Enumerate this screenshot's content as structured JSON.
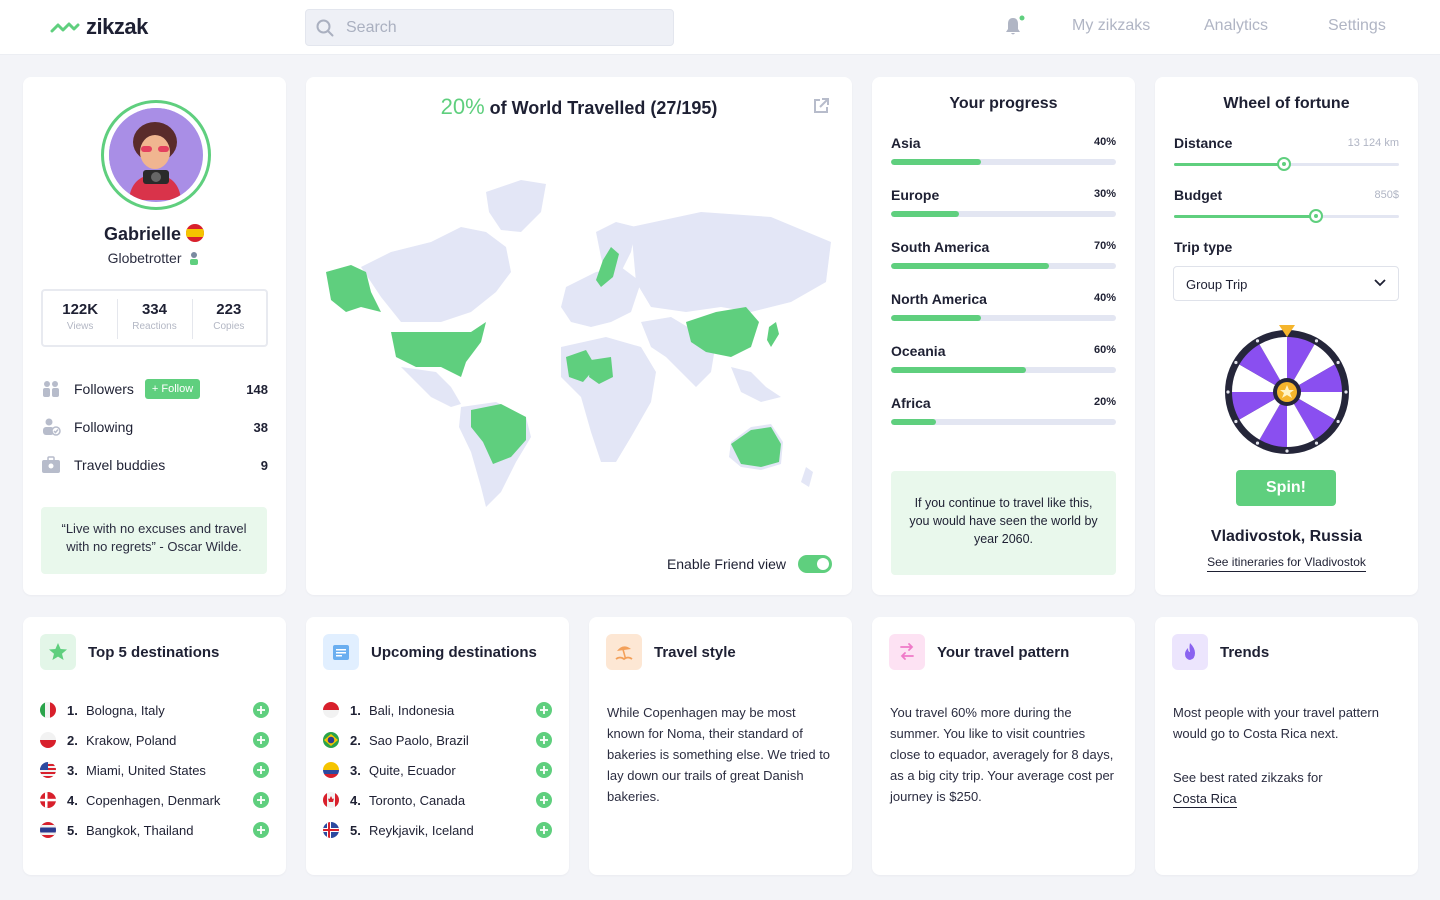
{
  "app": {
    "name": "zikzak",
    "search_placeholder": "Search",
    "nav": [
      "My zikzaks",
      "Analytics",
      "Settings"
    ]
  },
  "profile": {
    "name": "Gabrielle",
    "role": "Globetrotter",
    "stats": [
      {
        "value": "122K",
        "label": "Views"
      },
      {
        "value": "334",
        "label": "Reactions"
      },
      {
        "value": "223",
        "label": "Copies"
      }
    ],
    "followers": {
      "label": "Followers",
      "count": "148",
      "follow_label": "+ Follow"
    },
    "following": {
      "label": "Following",
      "count": "38"
    },
    "buddies": {
      "label": "Travel buddies",
      "count": "9"
    },
    "quote": "“Live with no excuses and travel with no regrets” - Oscar Wilde."
  },
  "world": {
    "pct": "20%",
    "title_rest": "of World Travelled (27/195)",
    "friend_view_label": "Enable Friend view",
    "friend_view_on": true
  },
  "progress": {
    "title": "Your progress",
    "items": [
      {
        "name": "Asia",
        "pct_label": "40%",
        "value": 40
      },
      {
        "name": "Europe",
        "pct_label": "30%",
        "value": 30
      },
      {
        "name": "South America",
        "pct_label": "70%",
        "value": 70
      },
      {
        "name": "North America",
        "pct_label": "40%",
        "value": 40
      },
      {
        "name": "Oceania",
        "pct_label": "60%",
        "value": 60
      },
      {
        "name": "Africa",
        "pct_label": "20%",
        "value": 20
      }
    ],
    "forecast": "If you continue to travel like this, you would have seen the world by year 2060."
  },
  "wheel": {
    "title": "Wheel of fortune",
    "distance": {
      "label": "Distance",
      "value": "13 124 km",
      "level": 0.49
    },
    "budget": {
      "label": "Budget",
      "value": "850$",
      "level": 0.63
    },
    "trip_type_label": "Trip type",
    "trip_type_value": "Group Trip",
    "spin_label": "Spin!",
    "destination": "Vladivostok, Russia",
    "itinerary_link": "See itineraries for Vladivostok"
  },
  "top5": {
    "title": "Top 5 destinations",
    "items": [
      {
        "num": "1.",
        "name": "Bologna, Italy"
      },
      {
        "num": "2.",
        "name": "Krakow, Poland"
      },
      {
        "num": "3.",
        "name": "Miami, United States"
      },
      {
        "num": "4.",
        "name": "Copenhagen, Denmark"
      },
      {
        "num": "5.",
        "name": "Bangkok, Thailand"
      }
    ]
  },
  "upcoming": {
    "title": "Upcoming destinations",
    "items": [
      {
        "num": "1.",
        "name": "Bali, Indonesia"
      },
      {
        "num": "2.",
        "name": "Sao Paolo, Brazil"
      },
      {
        "num": "3.",
        "name": "Quite, Ecuador"
      },
      {
        "num": "4.",
        "name": "Toronto, Canada"
      },
      {
        "num": "5.",
        "name": "Reykjavik, Iceland"
      }
    ]
  },
  "travel_style": {
    "title": "Travel style",
    "text": "While Copenhagen may be most known for Noma, their standard of bakeries is something else. We tried to lay down our trails of great Danish bakeries."
  },
  "pattern": {
    "title": "Your travel pattern",
    "text": "You travel 60% more during the summer. You like to visit countries close to equador, averagely for 8 days, as a big city trip. Your average cost per journey is $250."
  },
  "trends": {
    "title": "Trends",
    "text": "Most people with your travel pattern would go to Costa Rica next.",
    "link_prefix": "See best rated zikzaks for",
    "link": "Costa Rica"
  },
  "colors": {
    "accent": "#5fcf7e",
    "map_land": "#e3e6f6",
    "wheel_purple": "#8a4ff0"
  }
}
